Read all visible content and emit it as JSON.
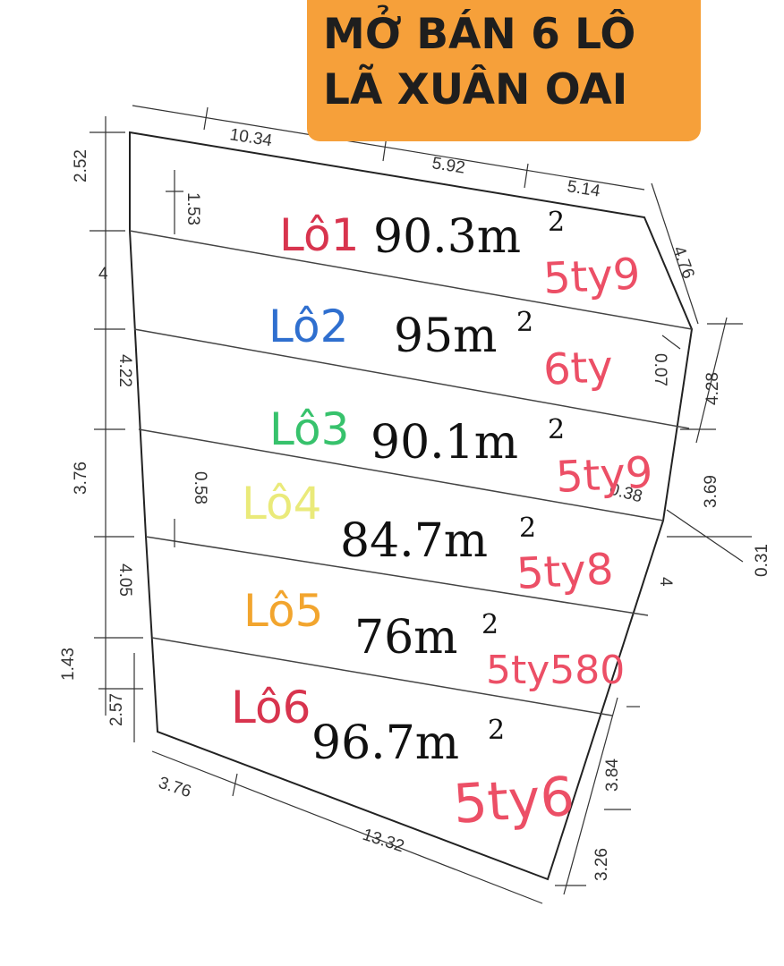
{
  "banner": {
    "line1": "MỞ BÁN 6 LÔ",
    "line2": "LÃ XUÂN OAI",
    "background": "#f6a03a"
  },
  "lots": [
    {
      "name": "Lô1",
      "area": "90.3m",
      "sup": "2",
      "price": "5ty9",
      "color": "#d8344e"
    },
    {
      "name": "Lô2",
      "area": "95m",
      "sup": "2",
      "price": "6ty",
      "color": "#2f6fcf"
    },
    {
      "name": "Lô3",
      "area": "90.1m",
      "sup": "2",
      "price": "5ty9",
      "color": "#37c26c"
    },
    {
      "name": "Lô4",
      "area": "84.7m",
      "sup": "2",
      "price": "5ty8",
      "color": "#eaea7a"
    },
    {
      "name": "Lô5",
      "area": "76m",
      "sup": "2",
      "price": "5ty580",
      "color": "#f2a52e"
    },
    {
      "name": "Lô6",
      "area": "96.7m",
      "sup": "2",
      "price": "5ty6",
      "color": "#d8344e"
    }
  ],
  "dimensions": {
    "top_a": "10.34",
    "top_b": "5.92",
    "top_c": "5.14",
    "right_slant": "4.76",
    "right_a": "0.07",
    "right_b": "4.28",
    "right_c": "3.69",
    "right_d": "0.38",
    "right_e": "0.31",
    "right_f": "4",
    "right_g": "3.84",
    "right_h": "3.26",
    "left_a": "2.52",
    "left_b": "1.53",
    "left_c": "4",
    "left_d": "4.22",
    "left_e": "3.76",
    "left_f": "0.58",
    "left_g": "4.05",
    "left_h": "1.43",
    "left_i": "2.57",
    "bottom_a": "3.76",
    "bottom_b": "13.32"
  }
}
